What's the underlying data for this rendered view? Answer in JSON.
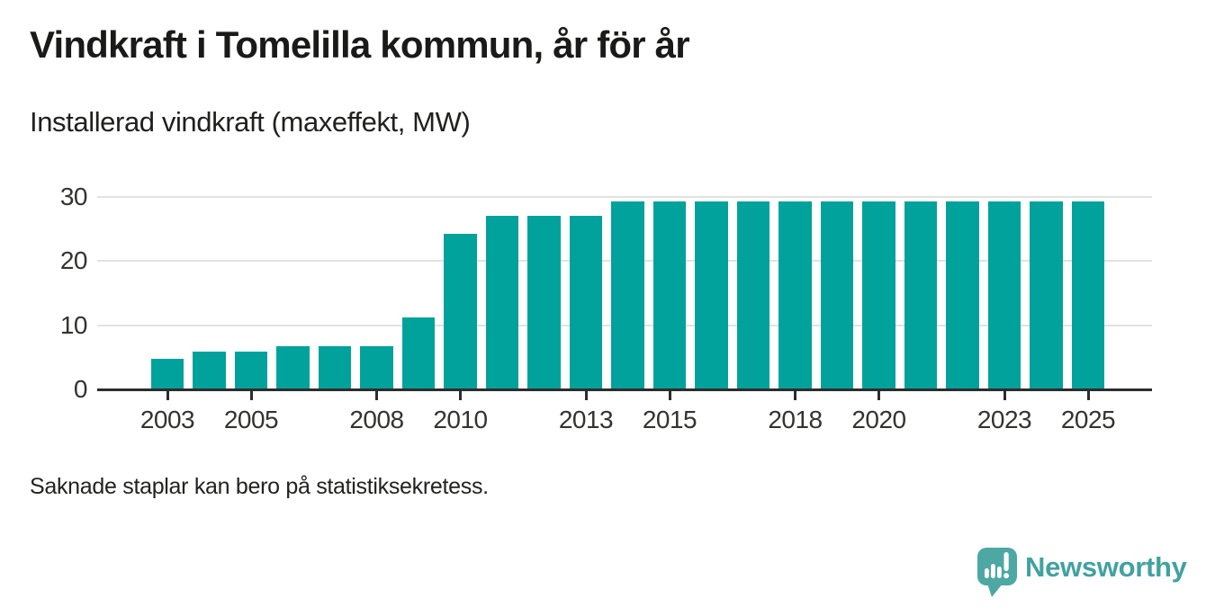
{
  "header": {
    "title": "Vindkraft i Tomelilla kommun, år för år",
    "subtitle": "Installerad vindkraft (maxeffekt, MW)"
  },
  "chart_data": {
    "type": "bar",
    "title": "Vindkraft i Tomelilla kommun, år för år",
    "subtitle": "Installerad vindkraft (maxeffekt, MW)",
    "unit": "MW",
    "categories": [
      2003,
      2004,
      2005,
      2006,
      2007,
      2008,
      2009,
      2010,
      2011,
      2012,
      2013,
      2014,
      2015,
      2016,
      2017,
      2018,
      2019,
      2020,
      2021,
      2022,
      2023,
      2024,
      2025
    ],
    "values": [
      4.7,
      5.9,
      5.9,
      6.7,
      6.7,
      6.7,
      11.2,
      24.2,
      27.0,
      27.0,
      27.0,
      29.3,
      29.3,
      29.3,
      29.3,
      29.3,
      29.3,
      29.3,
      29.3,
      29.3,
      29.3,
      29.3,
      29.3
    ],
    "x_tick_labels": [
      2003,
      2005,
      2008,
      2010,
      2013,
      2015,
      2018,
      2020,
      2023,
      2025
    ],
    "y_ticks": [
      0,
      10,
      20,
      30
    ],
    "ylim": [
      0,
      30
    ],
    "grid": "horizontal",
    "legend": "none",
    "bar_color": "#00a29b",
    "grid_color": "#e2e2e2",
    "axis_color": "#2d2d2d"
  },
  "footer": {
    "note": "Saknade staplar kan bero på statistiksekretess.",
    "brand": {
      "name": "Newsworthy",
      "wordmark_color": "#41a2a0",
      "logo_color": "#4da8a4"
    }
  }
}
